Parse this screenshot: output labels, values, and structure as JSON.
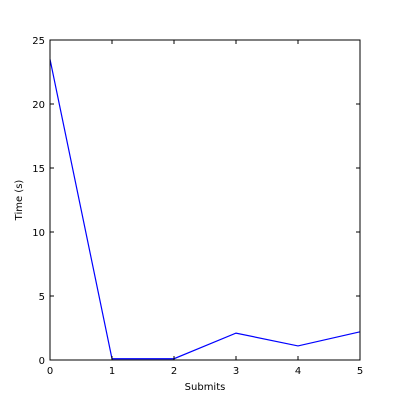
{
  "chart_data": {
    "type": "line",
    "title": "",
    "xlabel": "Submits",
    "ylabel": "Time (s)",
    "xlim": [
      0,
      5
    ],
    "ylim": [
      0,
      25
    ],
    "xticks": [
      0,
      1,
      2,
      3,
      4,
      5
    ],
    "yticks": [
      0,
      5,
      10,
      15,
      20,
      25
    ],
    "grid": false,
    "series": [
      {
        "color": "#0000ff",
        "x": [
          0,
          1,
          2,
          3,
          4,
          5
        ],
        "y": [
          23.5,
          0.1,
          0.1,
          2.1,
          1.1,
          2.2
        ]
      }
    ]
  }
}
